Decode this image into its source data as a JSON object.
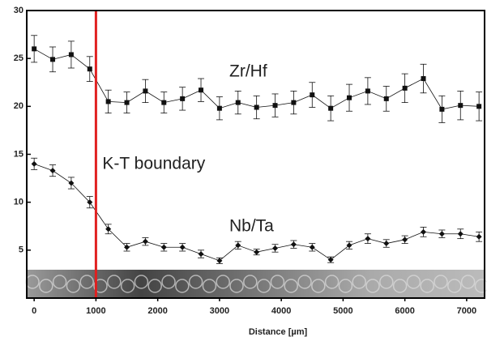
{
  "chart_data": {
    "type": "line",
    "x": [
      0,
      300,
      600,
      900,
      1200,
      1500,
      1800,
      2100,
      2400,
      2700,
      3000,
      3300,
      3600,
      3900,
      4200,
      4500,
      4800,
      5100,
      5400,
      5700,
      6000,
      6300,
      6600,
      6900,
      7200
    ],
    "series": [
      {
        "name": "Zr/Hf",
        "color": "#111111",
        "marker": "square",
        "values": [
          26.0,
          24.9,
          25.4,
          23.9,
          20.5,
          20.4,
          21.6,
          20.4,
          20.8,
          21.7,
          19.8,
          20.4,
          19.9,
          20.1,
          20.4,
          21.2,
          19.8,
          20.9,
          21.6,
          20.8,
          21.9,
          22.9,
          19.7,
          20.1,
          20.0
        ],
        "errors": [
          1.4,
          1.3,
          1.4,
          1.3,
          1.2,
          1.1,
          1.2,
          1.1,
          1.2,
          1.2,
          1.2,
          1.2,
          1.2,
          1.2,
          1.2,
          1.3,
          1.3,
          1.4,
          1.4,
          1.3,
          1.5,
          1.5,
          1.4,
          1.5,
          1.5
        ]
      },
      {
        "name": "Nb/Ta",
        "color": "#111111",
        "marker": "diamond",
        "values": [
          14.0,
          13.3,
          12.0,
          10.0,
          7.2,
          5.3,
          5.9,
          5.3,
          5.3,
          4.6,
          3.9,
          5.5,
          4.8,
          5.2,
          5.6,
          5.3,
          4.0,
          5.5,
          6.2,
          5.7,
          6.1,
          6.9,
          6.7,
          6.7,
          6.4
        ],
        "errors": [
          0.6,
          0.6,
          0.6,
          0.6,
          0.5,
          0.4,
          0.4,
          0.4,
          0.4,
          0.4,
          0.3,
          0.4,
          0.3,
          0.4,
          0.4,
          0.4,
          0.3,
          0.4,
          0.5,
          0.4,
          0.4,
          0.5,
          0.4,
          0.5,
          0.5
        ]
      }
    ],
    "annotations": [
      {
        "text": "K-T boundary",
        "x": 1000,
        "color": "#e02020"
      }
    ],
    "xlabel": "Distance [µm]",
    "xlim": [
      -120,
      7290
    ],
    "xticks": [
      0,
      1000,
      2000,
      3000,
      4000,
      5000,
      6000,
      7000
    ],
    "ylim": [
      0,
      30
    ],
    "yticks": [
      5,
      10,
      15,
      20,
      25,
      30
    ]
  }
}
